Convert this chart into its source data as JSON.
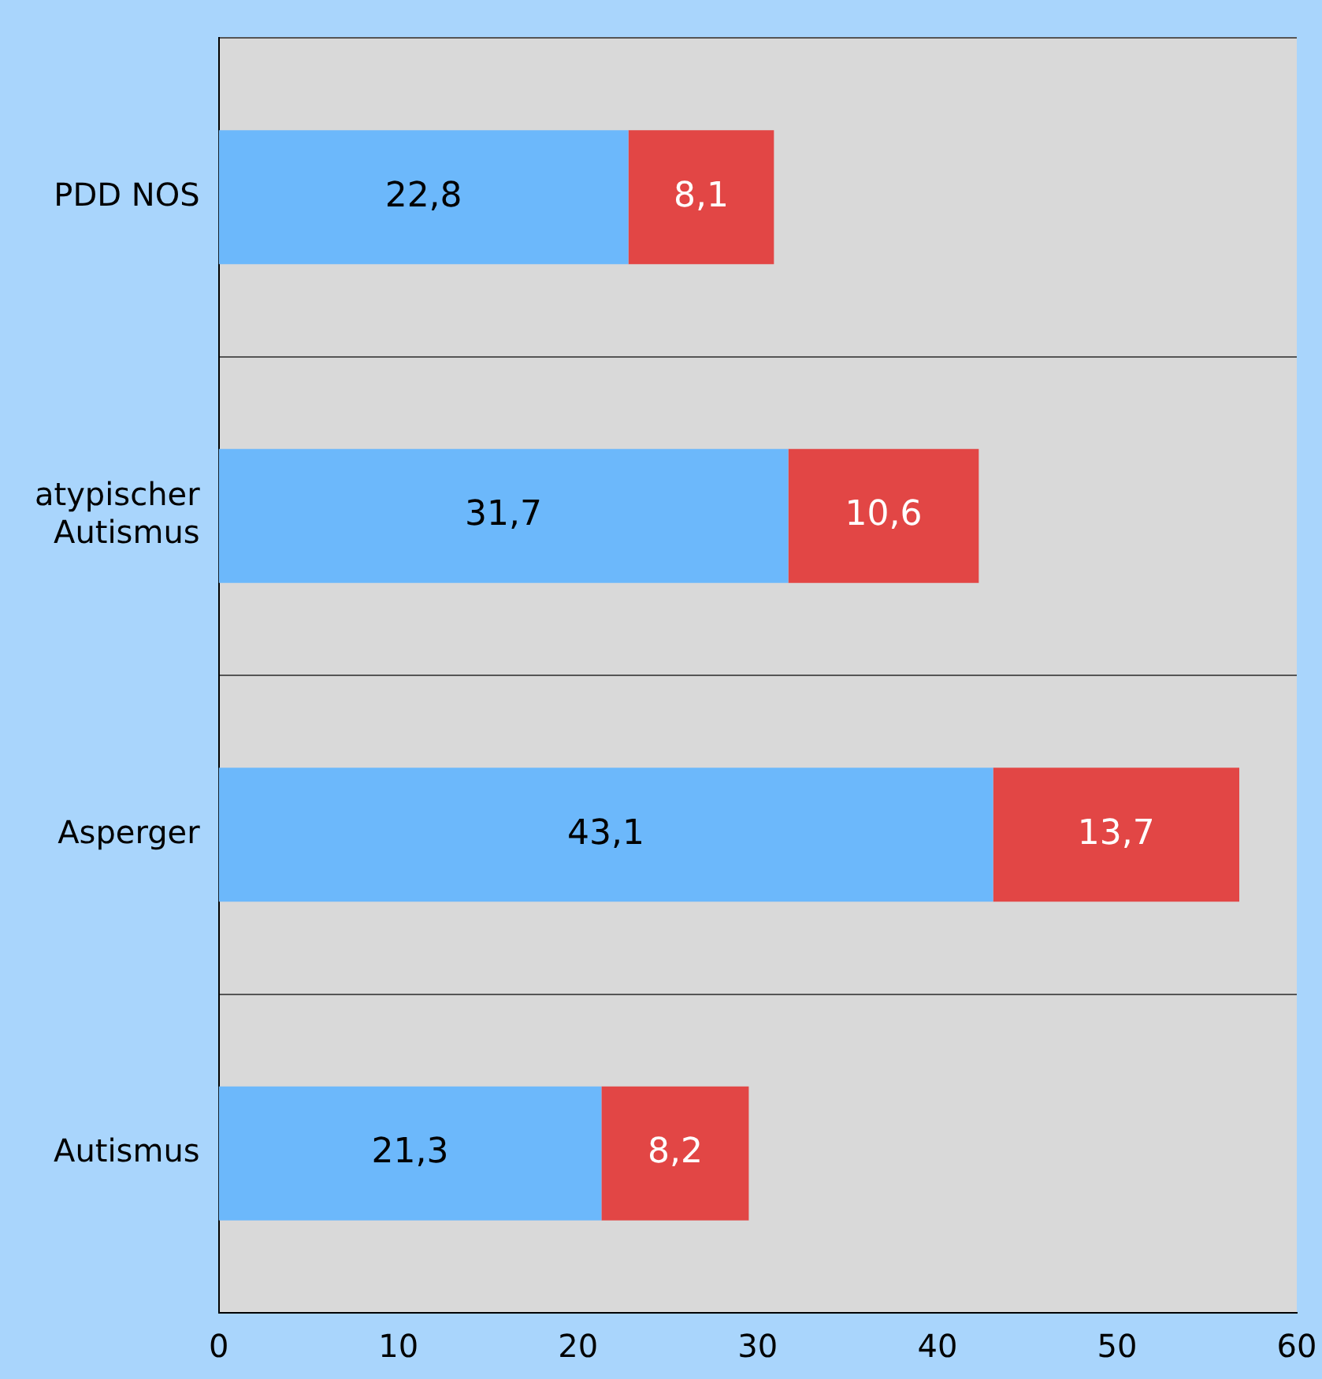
{
  "chart_data": {
    "type": "bar",
    "orientation": "horizontal",
    "stacked": true,
    "categories": [
      "PDD NOS",
      "atypischer Autismus",
      "Asperger",
      "Autismus"
    ],
    "series": [
      {
        "color": "#6cb8fb",
        "values": [
          22.8,
          31.7,
          43.1,
          21.3
        ],
        "value_labels": [
          "22,8",
          "31,7",
          "43,1",
          "21,3"
        ]
      },
      {
        "color": "#e24645",
        "values": [
          8.1,
          10.6,
          13.7,
          8.2
        ],
        "value_labels": [
          "8,1",
          "10,6",
          "13,7",
          "8,2"
        ]
      }
    ],
    "xlim": [
      0,
      60
    ],
    "xticks": [
      0,
      10,
      20,
      30,
      40,
      50,
      60
    ],
    "grid": "y"
  }
}
